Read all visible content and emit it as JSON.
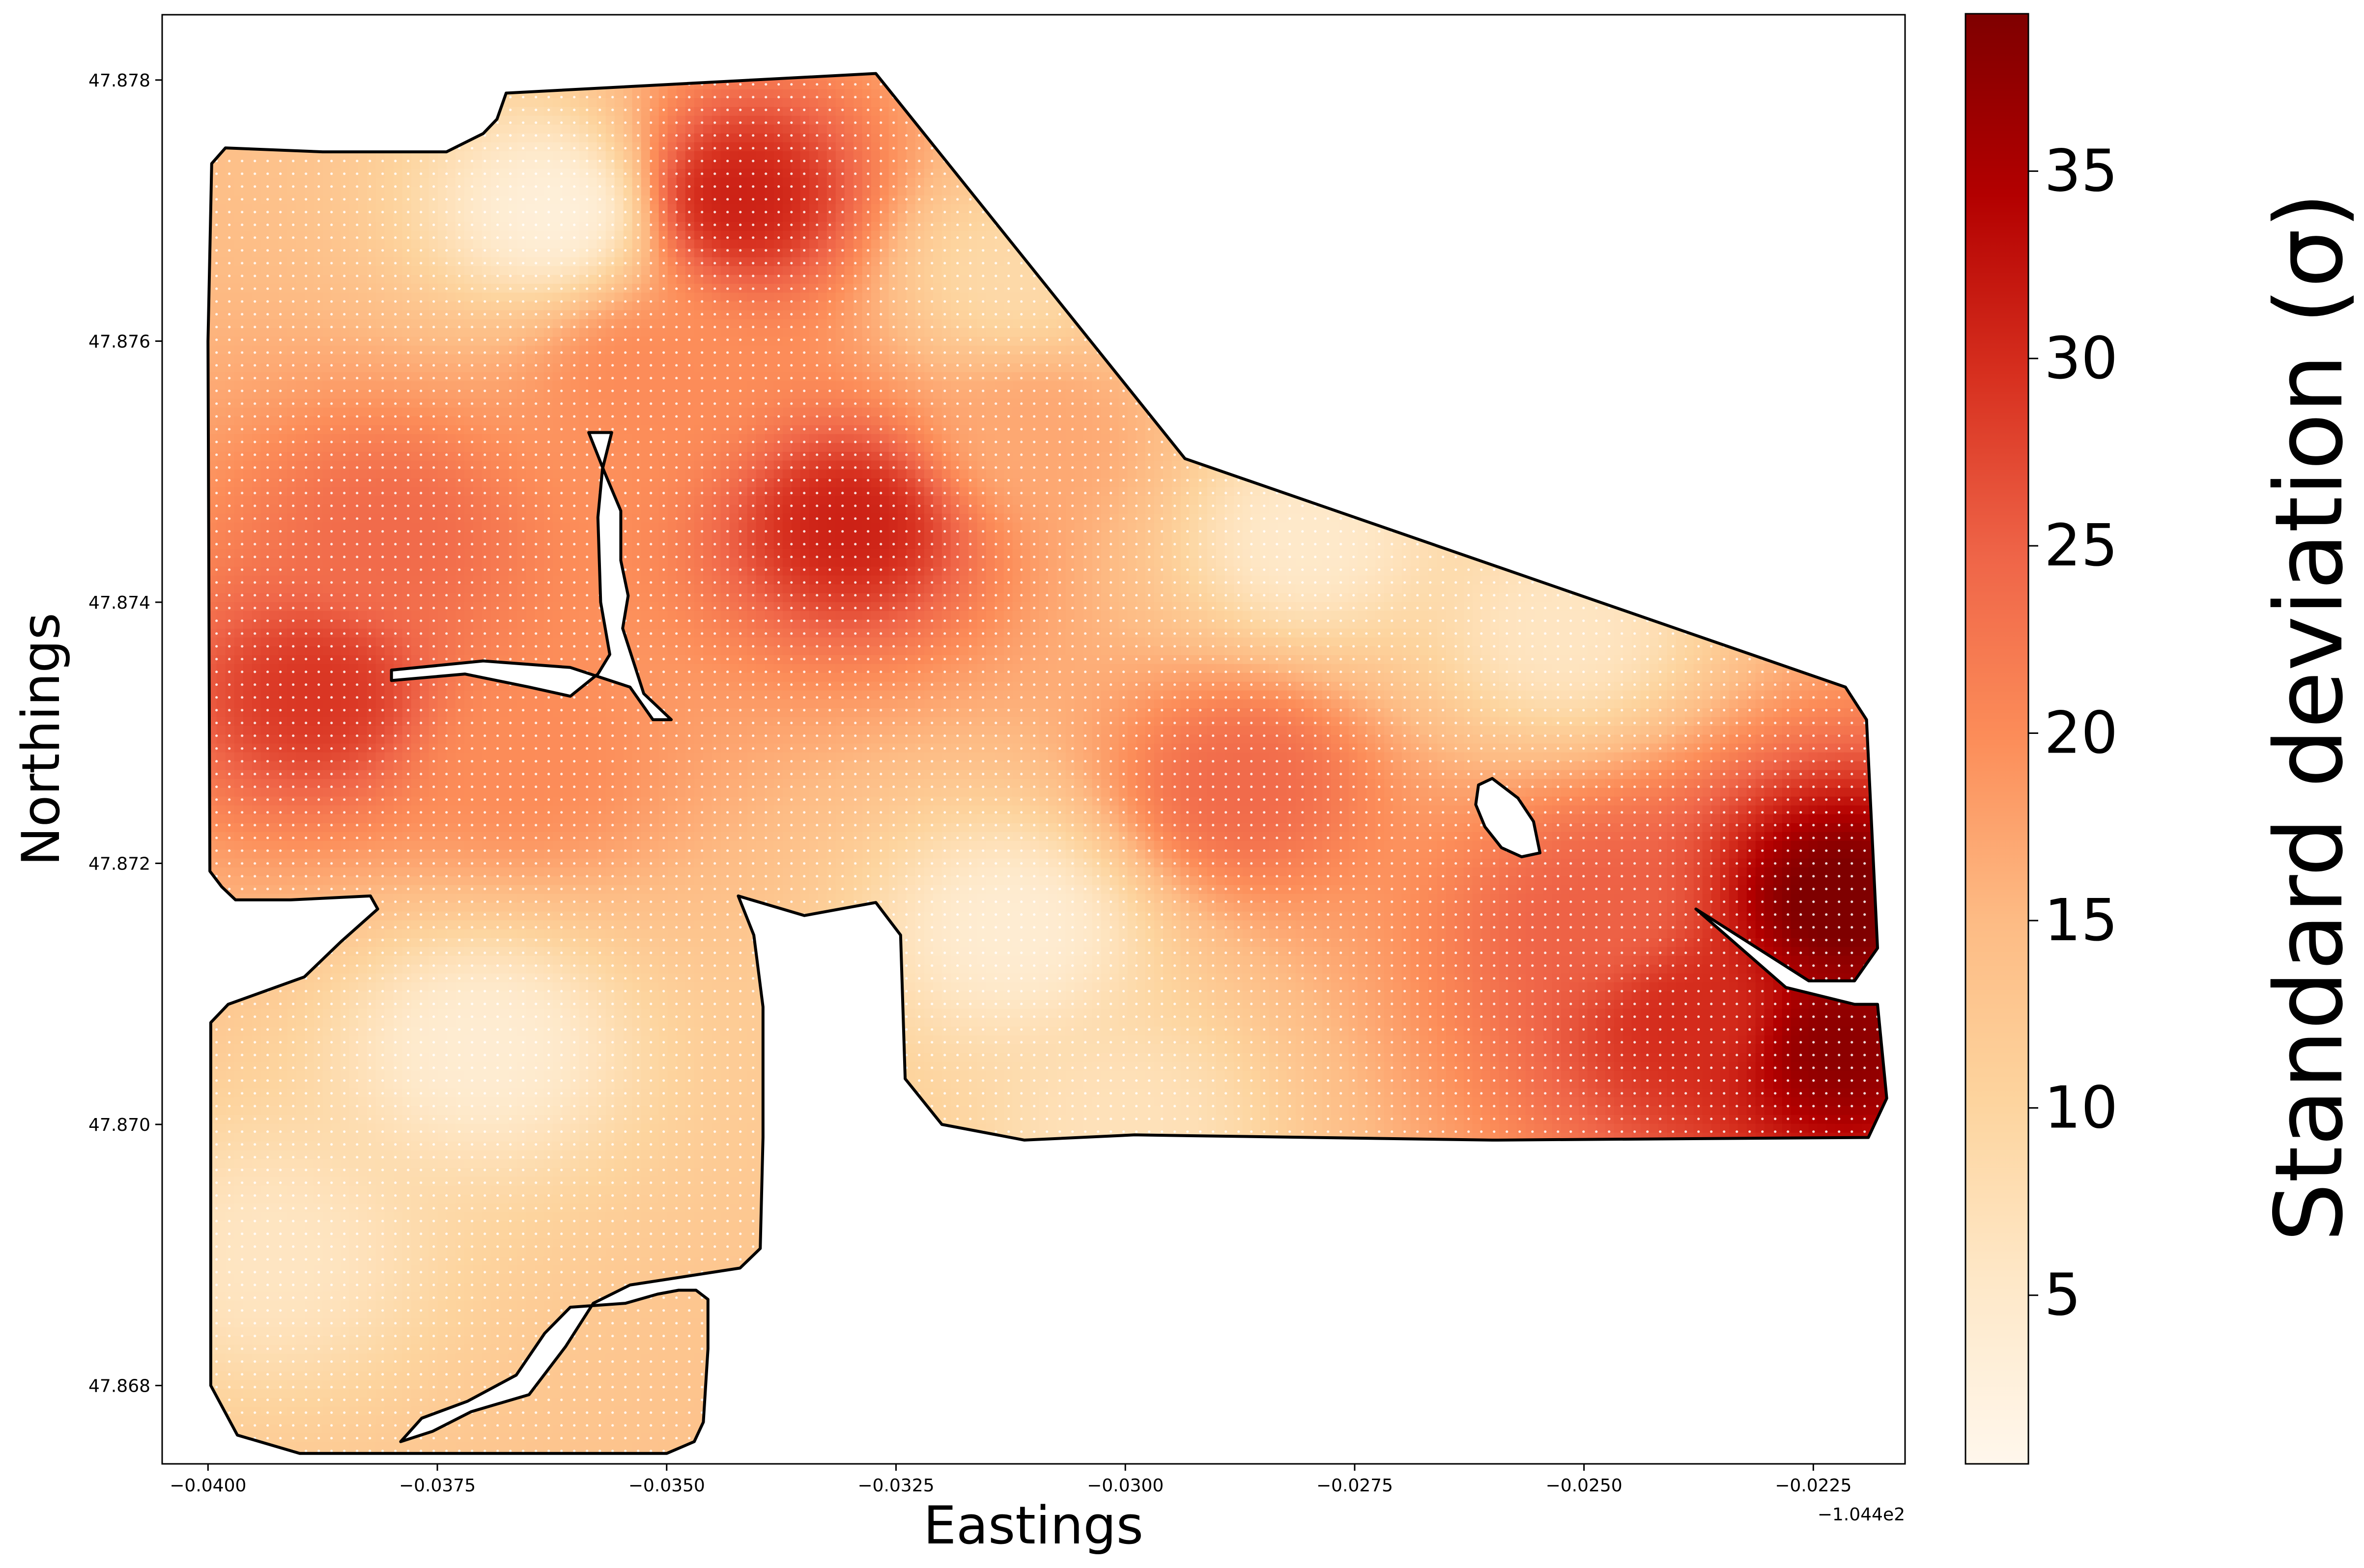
{
  "chart_data": {
    "type": "heatmap",
    "xlabel": "Eastings",
    "ylabel": "Northings",
    "x_offset_label": "−1.044e2",
    "xlim": [
      -0.0405,
      -0.0215
    ],
    "ylim": [
      47.8674,
      47.8785
    ],
    "x_ticks": [
      -0.04,
      -0.0375,
      -0.035,
      -0.0325,
      -0.03,
      -0.0275,
      -0.025,
      -0.0225
    ],
    "x_tick_labels": [
      "−0.0400",
      "−0.0375",
      "−0.0350",
      "−0.0325",
      "−0.0300",
      "−0.0275",
      "−0.0250",
      "−0.0225"
    ],
    "y_ticks": [
      47.868,
      47.87,
      47.872,
      47.874,
      47.876,
      47.878
    ],
    "y_tick_labels": [
      "47.868",
      "47.870",
      "47.872",
      "47.874",
      "47.876",
      "47.878"
    ],
    "colorbar": {
      "label": "Standard deviation (σ)",
      "range": [
        0.5,
        39.2
      ],
      "ticks": [
        5,
        10,
        15,
        20,
        25,
        30,
        35
      ],
      "tick_labels": [
        "5",
        "10",
        "15",
        "20",
        "25",
        "30",
        "35"
      ],
      "colormap": "OrRd",
      "color_stops": [
        "#fff7ec",
        "#fee8c8",
        "#fdd49e",
        "#fdbb84",
        "#fc8d59",
        "#ef6548",
        "#d7301f",
        "#b30000",
        "#7f0000"
      ]
    },
    "boundary_color": "#000000",
    "sample_point_color": "#ffffff",
    "field_hotspots": [
      {
        "x": -0.0342,
        "y": 47.8771,
        "sigma": 31
      },
      {
        "x": -0.033,
        "y": 47.8746,
        "sigma": 31
      },
      {
        "x": -0.0388,
        "y": 47.8733,
        "sigma": 29
      },
      {
        "x": -0.038,
        "y": 47.8745,
        "sigma": 24
      },
      {
        "x": -0.0287,
        "y": 47.8726,
        "sigma": 24
      },
      {
        "x": -0.0222,
        "y": 47.8717,
        "sigma": 40
      },
      {
        "x": -0.0222,
        "y": 47.8706,
        "sigma": 38
      },
      {
        "x": -0.0238,
        "y": 47.8708,
        "sigma": 30
      },
      {
        "x": -0.0248,
        "y": 47.8716,
        "sigma": 25
      },
      {
        "x": -0.0365,
        "y": 47.8728,
        "sigma": 20
      },
      {
        "x": -0.0352,
        "y": 47.8757,
        "sigma": 20
      },
      {
        "x": -0.031,
        "y": 47.8753,
        "sigma": 17
      }
    ],
    "field_coldspots": [
      {
        "x": -0.0362,
        "y": 47.877,
        "sigma": 3
      },
      {
        "x": -0.037,
        "y": 47.8706,
        "sigma": 4
      },
      {
        "x": -0.0393,
        "y": 47.869,
        "sigma": 6
      },
      {
        "x": -0.0312,
        "y": 47.8715,
        "sigma": 4
      },
      {
        "x": -0.028,
        "y": 47.8745,
        "sigma": 5
      },
      {
        "x": -0.0252,
        "y": 47.8738,
        "sigma": 6
      },
      {
        "x": -0.03,
        "y": 47.87,
        "sigma": 7
      },
      {
        "x": -0.0312,
        "y": 47.8765,
        "sigma": 9
      }
    ],
    "boundary": [
      [
        -0.03996,
        47.87736
      ],
      [
        -0.03981,
        47.87748
      ],
      [
        -0.03875,
        47.87745
      ],
      [
        -0.0374,
        47.87745
      ],
      [
        -0.037,
        47.87759
      ],
      [
        -0.03685,
        47.8777
      ],
      [
        -0.03675,
        47.8779
      ],
      [
        -0.03272,
        47.87805
      ],
      [
        -0.02935,
        47.8751
      ],
      [
        -0.02215,
        47.87335
      ],
      [
        -0.02192,
        47.8731
      ],
      [
        -0.0218,
        47.87135
      ],
      [
        -0.02205,
        47.8711
      ],
      [
        -0.02255,
        47.8711
      ],
      [
        -0.02378,
        47.87165
      ],
      [
        -0.0228,
        47.87105
      ],
      [
        -0.02205,
        47.87092
      ],
      [
        -0.0218,
        47.87092
      ],
      [
        -0.0217,
        47.8702
      ],
      [
        -0.0219,
        47.8699
      ],
      [
        -0.026,
        47.86988
      ],
      [
        -0.0299,
        47.86992
      ],
      [
        -0.0311,
        47.86988
      ],
      [
        -0.032,
        47.87
      ],
      [
        -0.0324,
        47.87035
      ],
      [
        -0.03245,
        47.87145
      ],
      [
        -0.03272,
        47.8717
      ],
      [
        -0.0335,
        47.8716
      ],
      [
        -0.03422,
        47.87175
      ],
      [
        -0.03405,
        47.87145
      ],
      [
        -0.03395,
        47.8709
      ],
      [
        -0.03395,
        47.8699
      ],
      [
        -0.03398,
        47.86905
      ],
      [
        -0.0342,
        47.8689
      ],
      [
        -0.0354,
        47.86877
      ],
      [
        -0.0358,
        47.86863
      ],
      [
        -0.0361,
        47.8683
      ],
      [
        -0.0365,
        47.86793
      ],
      [
        -0.03713,
        47.8678
      ],
      [
        -0.03755,
        47.86765
      ],
      [
        -0.0379,
        47.86757
      ],
      [
        -0.03767,
        47.86775
      ],
      [
        -0.03717,
        47.86788
      ],
      [
        -0.03664,
        47.86808
      ],
      [
        -0.03633,
        47.8684
      ],
      [
        -0.03605,
        47.8686
      ],
      [
        -0.03545,
        47.86863
      ],
      [
        -0.0351,
        47.8687
      ],
      [
        -0.03487,
        47.86873
      ],
      [
        -0.03468,
        47.86873
      ],
      [
        -0.03455,
        47.86866
      ],
      [
        -0.03455,
        47.86828
      ],
      [
        -0.0346,
        47.86772
      ],
      [
        -0.0347,
        47.86757
      ],
      [
        -0.035,
        47.86748
      ],
      [
        -0.039,
        47.86748
      ],
      [
        -0.03968,
        47.86762
      ],
      [
        -0.03997,
        47.868
      ],
      [
        -0.03997,
        47.86948
      ],
      [
        -0.03997,
        47.87078
      ],
      [
        -0.03978,
        47.87092
      ],
      [
        -0.03895,
        47.87113
      ],
      [
        -0.03855,
        47.8714
      ],
      [
        -0.03815,
        47.87165
      ],
      [
        -0.03823,
        47.87175
      ],
      [
        -0.0391,
        47.87172
      ],
      [
        -0.0397,
        47.87172
      ],
      [
        -0.03985,
        47.87182
      ],
      [
        -0.03998,
        47.87194
      ],
      [
        -0.04,
        47.876
      ]
    ],
    "holes": [
      [
        [
          -0.03585,
          47.8753
        ],
        [
          -0.03568,
          47.875
        ],
        [
          -0.0355,
          47.8747
        ],
        [
          -0.0355,
          47.87432
        ],
        [
          -0.03542,
          47.87405
        ],
        [
          -0.03548,
          47.8738
        ],
        [
          -0.03525,
          47.8733
        ],
        [
          -0.03495,
          47.8731
        ],
        [
          -0.03515,
          47.8731
        ],
        [
          -0.0354,
          47.87335
        ],
        [
          -0.03605,
          47.8735
        ],
        [
          -0.037,
          47.87355
        ],
        [
          -0.038,
          47.87348
        ],
        [
          -0.038,
          47.8734
        ],
        [
          -0.0372,
          47.87345
        ],
        [
          -0.0365,
          47.87335
        ],
        [
          -0.03605,
          47.87328
        ],
        [
          -0.03575,
          47.87345
        ],
        [
          -0.03562,
          47.8736
        ],
        [
          -0.03572,
          47.874
        ],
        [
          -0.03575,
          47.87465
        ],
        [
          -0.0357,
          47.87502
        ],
        [
          -0.0356,
          47.8753
        ]
      ],
      [
        [
          -0.02615,
          47.8726
        ],
        [
          -0.026,
          47.87265
        ],
        [
          -0.02572,
          47.8725
        ],
        [
          -0.02555,
          47.87232
        ],
        [
          -0.02548,
          47.87208
        ],
        [
          -0.02568,
          47.87205
        ],
        [
          -0.0259,
          47.87212
        ],
        [
          -0.02608,
          47.87228
        ],
        [
          -0.02618,
          47.87245
        ]
      ]
    ]
  }
}
